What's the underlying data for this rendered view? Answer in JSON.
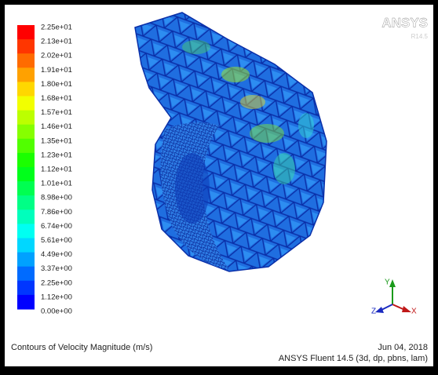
{
  "header": {
    "logo": "ANSYS",
    "version": "R14.5"
  },
  "legend": {
    "labels": [
      "2.25e+01",
      "2.13e+01",
      "2.02e+01",
      "1.91e+01",
      "1.80e+01",
      "1.68e+01",
      "1.57e+01",
      "1.46e+01",
      "1.35e+01",
      "1.23e+01",
      "1.12e+01",
      "1.01e+01",
      "8.98e+00",
      "7.86e+00",
      "6.74e+00",
      "5.61e+00",
      "4.49e+00",
      "3.37e+00",
      "2.25e+00",
      "1.12e+00",
      "0.00e+00"
    ]
  },
  "triad": {
    "y": "Y",
    "z": "Z",
    "x": "X"
  },
  "footer": {
    "title": "Contours of Velocity Magnitude (m/s)",
    "date": "Jun 04, 2018",
    "solver": "ANSYS Fluent 14.5 (3d, dp, pbns, lam)"
  }
}
